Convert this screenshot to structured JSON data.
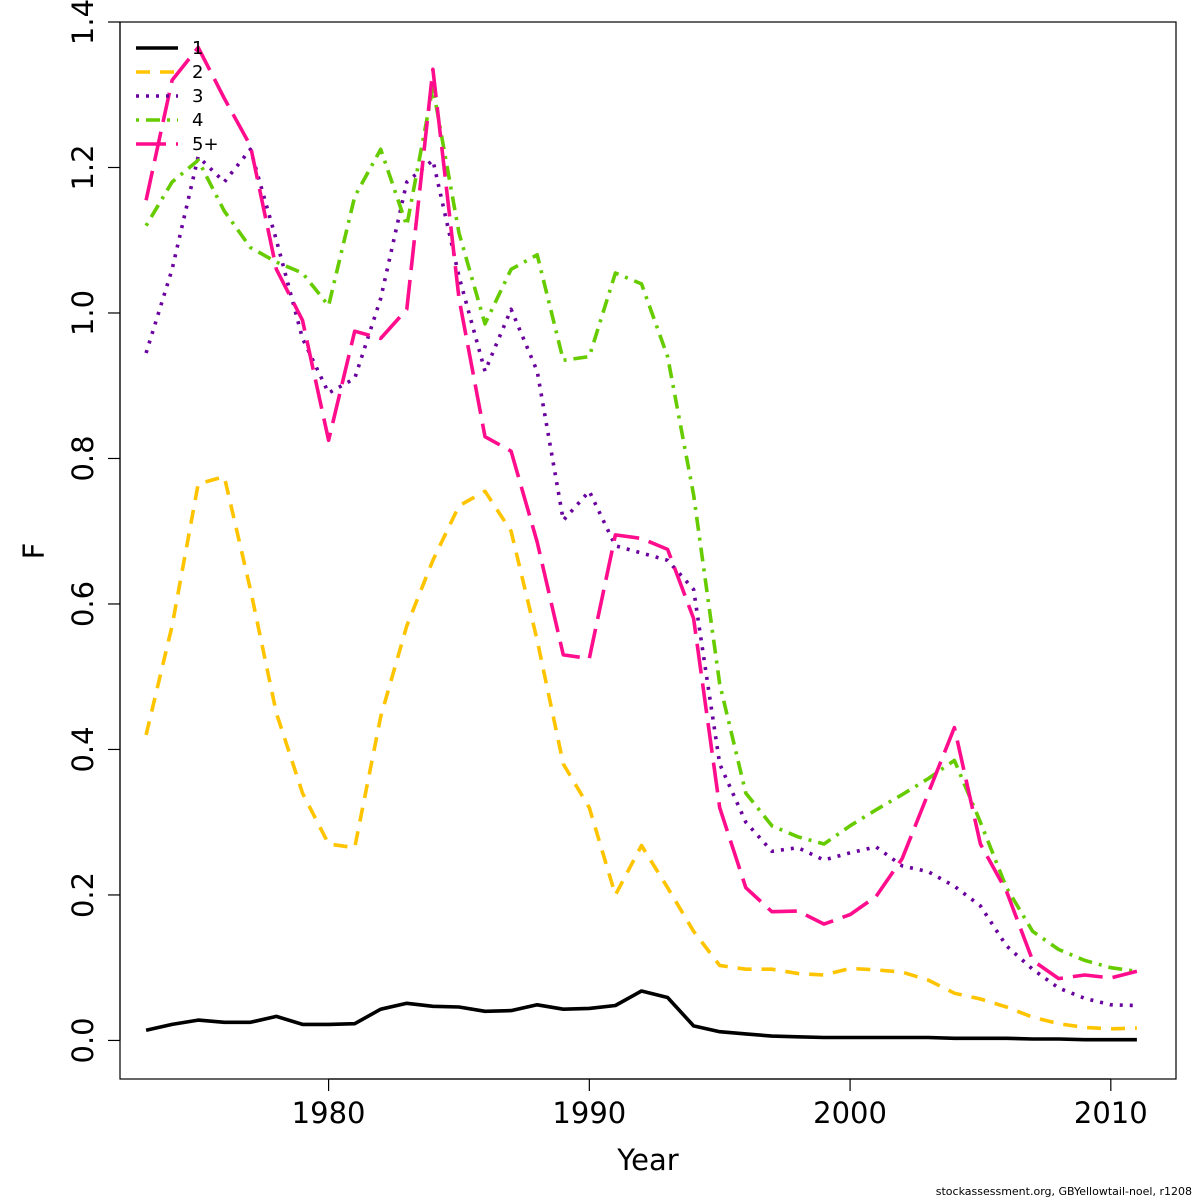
{
  "chart_data": {
    "type": "line",
    "title": "",
    "xlabel": "Year",
    "ylabel": "F",
    "xlim": [
      1972,
      2012.5
    ],
    "ylim": [
      -0.053,
      1.4
    ],
    "x_ticks": [
      1980,
      1990,
      2000,
      2010
    ],
    "y_ticks": [
      0.0,
      0.2,
      0.4,
      0.6,
      0.8,
      1.0,
      1.2,
      1.4
    ],
    "y_tick_labels": [
      "0.0",
      "0.2",
      "0.4",
      "0.6",
      "0.8",
      "1.0",
      "1.2",
      "1.4"
    ],
    "x": [
      1973,
      1974,
      1975,
      1976,
      1977,
      1978,
      1979,
      1980,
      1981,
      1982,
      1983,
      1984,
      1985,
      1986,
      1987,
      1988,
      1989,
      1990,
      1991,
      1992,
      1993,
      1994,
      1995,
      1996,
      1997,
      1998,
      1999,
      2000,
      2001,
      2002,
      2003,
      2004,
      2005,
      2006,
      2007,
      2008,
      2009,
      2010,
      2011
    ],
    "legend_position": "top-left",
    "series": [
      {
        "name": "1",
        "color": "#000000",
        "dash": "solid",
        "values": [
          0.014,
          0.022,
          0.028,
          0.025,
          0.025,
          0.033,
          0.022,
          0.022,
          0.023,
          0.043,
          0.051,
          0.047,
          0.046,
          0.04,
          0.041,
          0.049,
          0.043,
          0.044,
          0.048,
          0.068,
          0.059,
          0.02,
          0.012,
          0.009,
          0.006,
          0.005,
          0.004,
          0.004,
          0.004,
          0.004,
          0.004,
          0.003,
          0.003,
          0.003,
          0.002,
          0.002,
          0.001,
          0.001,
          0.001
        ]
      },
      {
        "name": "2",
        "color": "#ffc400",
        "dash": "dashed",
        "values": [
          0.42,
          0.57,
          0.765,
          0.775,
          0.62,
          0.45,
          0.34,
          0.27,
          0.265,
          0.445,
          0.57,
          0.66,
          0.735,
          0.755,
          0.7,
          0.55,
          0.38,
          0.32,
          0.2,
          0.268,
          0.21,
          0.15,
          0.103,
          0.098,
          0.098,
          0.092,
          0.09,
          0.099,
          0.097,
          0.094,
          0.083,
          0.065,
          0.057,
          0.046,
          0.032,
          0.023,
          0.018,
          0.016,
          0.017
        ]
      },
      {
        "name": "3",
        "color": "#6a009e",
        "dash": "dotted",
        "values": [
          0.945,
          1.06,
          1.215,
          1.18,
          1.225,
          1.1,
          0.965,
          0.89,
          0.91,
          1.02,
          1.18,
          1.21,
          1.05,
          0.92,
          1.005,
          0.92,
          0.715,
          0.755,
          0.68,
          0.67,
          0.66,
          0.62,
          0.38,
          0.3,
          0.26,
          0.265,
          0.248,
          0.258,
          0.266,
          0.24,
          0.232,
          0.212,
          0.185,
          0.13,
          0.098,
          0.072,
          0.058,
          0.049,
          0.048
        ]
      },
      {
        "name": "4",
        "color": "#66cc00",
        "dash": "dotdash",
        "values": [
          1.12,
          1.18,
          1.21,
          1.14,
          1.09,
          1.07,
          1.055,
          1.01,
          1.16,
          1.225,
          1.12,
          1.31,
          1.11,
          0.985,
          1.06,
          1.08,
          0.935,
          0.94,
          1.055,
          1.04,
          0.94,
          0.75,
          0.49,
          0.34,
          0.295,
          0.28,
          0.27,
          0.295,
          0.317,
          0.338,
          0.36,
          0.385,
          0.3,
          0.21,
          0.15,
          0.125,
          0.11,
          0.1,
          0.095
        ]
      },
      {
        "name": "5+",
        "color": "#ff0d8d",
        "dash": "longdash",
        "values": [
          1.155,
          1.32,
          1.365,
          1.295,
          1.23,
          1.06,
          0.99,
          0.825,
          0.975,
          0.965,
          1.005,
          1.335,
          1.02,
          0.83,
          0.81,
          0.685,
          0.53,
          0.525,
          0.695,
          0.69,
          0.675,
          0.58,
          0.32,
          0.21,
          0.177,
          0.178,
          0.16,
          0.173,
          0.198,
          0.25,
          0.34,
          0.43,
          0.27,
          0.205,
          0.11,
          0.085,
          0.09,
          0.086,
          0.095
        ]
      }
    ]
  },
  "footer_note": "stockassessment.org, GBYellowtail-noel, r1208"
}
